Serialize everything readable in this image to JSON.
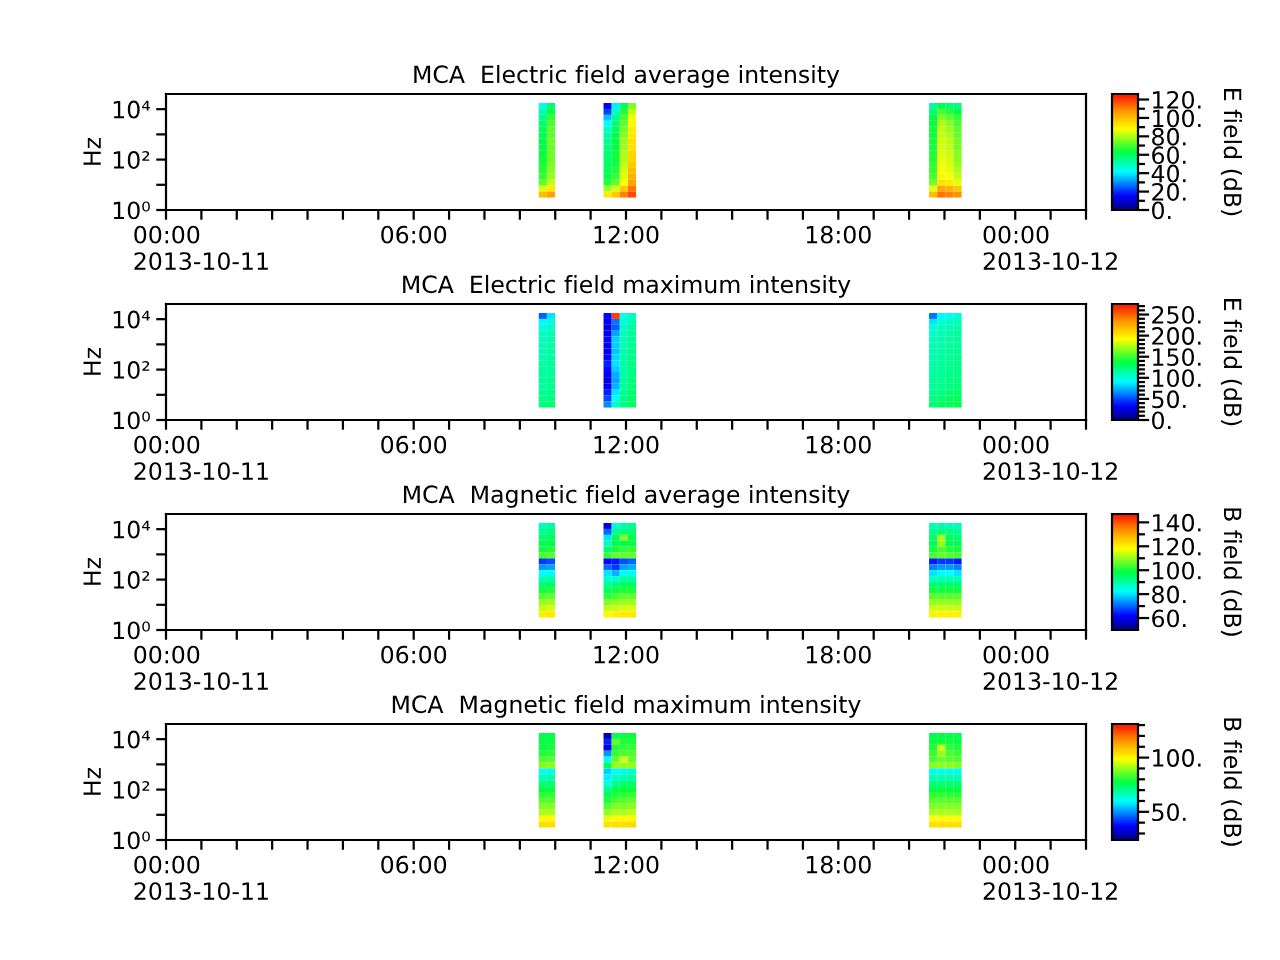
{
  "chart_data": [
    {
      "type": "heatmap",
      "title": "MCA  Electric field average intensity",
      "ylabel": "Hz",
      "clabel": "E field (dB)",
      "log": "y",
      "x": [
        9.65,
        9.88,
        10.11,
        11.25,
        11.48,
        11.71,
        11.94,
        12.17,
        12.4,
        20.45,
        20.68,
        20.91,
        21.14,
        21.37
      ],
      "y": [
        13400,
        7800,
        4560,
        2660,
        1550,
        906,
        528,
        308,
        180,
        105,
        61,
        36,
        21,
        12,
        7.1,
        4.1
      ],
      "xlim": [
        -1,
        25
      ],
      "xticks": [
        {
          "value": -1,
          "label": null
        },
        {
          "value": 0,
          "label": "00:00\n2013-10-11"
        },
        {
          "value": 1,
          "label": null
        },
        {
          "value": 2,
          "label": null
        },
        {
          "value": 3,
          "label": null
        },
        {
          "value": 4,
          "label": null
        },
        {
          "value": 5,
          "label": null
        },
        {
          "value": 6,
          "label": "06:00"
        },
        {
          "value": 7,
          "label": null
        },
        {
          "value": 8,
          "label": null
        },
        {
          "value": 9,
          "label": null
        },
        {
          "value": 10,
          "label": null
        },
        {
          "value": 11,
          "label": null
        },
        {
          "value": 12,
          "label": "12:00"
        },
        {
          "value": 13,
          "label": null
        },
        {
          "value": 14,
          "label": null
        },
        {
          "value": 15,
          "label": null
        },
        {
          "value": 16,
          "label": null
        },
        {
          "value": 17,
          "label": null
        },
        {
          "value": 18,
          "label": "18:00"
        },
        {
          "value": 19,
          "label": null
        },
        {
          "value": 20,
          "label": null
        },
        {
          "value": 21,
          "label": null
        },
        {
          "value": 22,
          "label": null
        },
        {
          "value": 23,
          "label": null
        },
        {
          "value": 24,
          "label": "00:00\n2013-10-12"
        },
        {
          "value": 25,
          "label": null
        }
      ],
      "ylim": [
        1,
        40000
      ],
      "yticks": [
        {
          "value": 1,
          "label": "10⁰"
        },
        {
          "value": 10,
          "label": null
        },
        {
          "value": 100,
          "label": "10²"
        },
        {
          "value": 1000,
          "label": null
        },
        {
          "value": 10000,
          "label": "10⁴"
        }
      ],
      "clim": [
        0,
        126
      ],
      "cticks": [
        {
          "value": 0,
          "label": "0."
        },
        {
          "value": 10,
          "label": null
        },
        {
          "value": 20,
          "label": "20."
        },
        {
          "value": 30,
          "label": null
        },
        {
          "value": 40,
          "label": "40."
        },
        {
          "value": 50,
          "label": null
        },
        {
          "value": 60,
          "label": "60."
        },
        {
          "value": 70,
          "label": null
        },
        {
          "value": 80,
          "label": "80."
        },
        {
          "value": 90,
          "label": null
        },
        {
          "value": 100,
          "label": "100."
        },
        {
          "value": 110,
          "label": null
        },
        {
          "value": 120,
          "label": "120."
        }
      ],
      "cells": [
        [
          44,
          58,
          null,
          null,
          15,
          40,
          60,
          75,
          null,
          null,
          52,
          62,
          58,
          56
        ],
        [
          50,
          64,
          null,
          null,
          22,
          48,
          66,
          82,
          null,
          null,
          58,
          70,
          66,
          63
        ],
        [
          55,
          68,
          null,
          null,
          35,
          55,
          70,
          88,
          null,
          null,
          62,
          76,
          72,
          68
        ],
        [
          58,
          70,
          null,
          null,
          42,
          58,
          72,
          90,
          null,
          null,
          63,
          80,
          76,
          70
        ],
        [
          60,
          72,
          null,
          null,
          48,
          60,
          74,
          92,
          null,
          null,
          64,
          82,
          78,
          72
        ],
        [
          62,
          72,
          null,
          null,
          52,
          62,
          76,
          92,
          null,
          null,
          64,
          82,
          80,
          73
        ],
        [
          62,
          73,
          null,
          null,
          55,
          63,
          78,
          94,
          null,
          null,
          65,
          84,
          81,
          74
        ],
        [
          63,
          73,
          null,
          null,
          56,
          63,
          78,
          94,
          null,
          null,
          65,
          84,
          82,
          74
        ],
        [
          63,
          74,
          null,
          null,
          58,
          64,
          80,
          95,
          null,
          null,
          66,
          85,
          83,
          76
        ],
        [
          64,
          74,
          null,
          null,
          58,
          64,
          80,
          96,
          null,
          null,
          66,
          86,
          84,
          76
        ],
        [
          65,
          75,
          null,
          null,
          60,
          65,
          82,
          98,
          null,
          null,
          68,
          87,
          85,
          78
        ],
        [
          66,
          76,
          null,
          null,
          60,
          66,
          84,
          100,
          null,
          null,
          68,
          88,
          86,
          80
        ],
        [
          68,
          78,
          null,
          null,
          62,
          68,
          85,
          102,
          null,
          null,
          70,
          90,
          88,
          82
        ],
        [
          72,
          82,
          null,
          null,
          66,
          72,
          88,
          105,
          null,
          null,
          74,
          94,
          92,
          86
        ],
        [
          85,
          92,
          null,
          null,
          78,
          84,
          98,
          112,
          null,
          null,
          86,
          104,
          102,
          98
        ],
        [
          100,
          105,
          null,
          null,
          92,
          98,
          110,
          118,
          null,
          null,
          100,
          112,
          110,
          108
        ]
      ]
    },
    {
      "type": "heatmap",
      "title": "MCA  Electric field maximum intensity",
      "ylabel": "Hz",
      "clabel": "E field (dB)",
      "log": "y",
      "x": [
        9.65,
        9.88,
        10.11,
        11.25,
        11.48,
        11.71,
        11.94,
        12.17,
        12.4,
        20.45,
        20.68,
        20.91,
        21.14,
        21.37
      ],
      "y": [
        13400,
        7800,
        4560,
        2660,
        1550,
        906,
        528,
        308,
        180,
        105,
        61,
        36,
        21,
        12,
        7.1,
        4.1
      ],
      "xlim": [
        -1,
        25
      ],
      "xticks": [
        {
          "value": -1,
          "label": null
        },
        {
          "value": 0,
          "label": "00:00\n2013-10-11"
        },
        {
          "value": 1,
          "label": null
        },
        {
          "value": 2,
          "label": null
        },
        {
          "value": 3,
          "label": null
        },
        {
          "value": 4,
          "label": null
        },
        {
          "value": 5,
          "label": null
        },
        {
          "value": 6,
          "label": "06:00"
        },
        {
          "value": 7,
          "label": null
        },
        {
          "value": 8,
          "label": null
        },
        {
          "value": 9,
          "label": null
        },
        {
          "value": 10,
          "label": null
        },
        {
          "value": 11,
          "label": null
        },
        {
          "value": 12,
          "label": "12:00"
        },
        {
          "value": 13,
          "label": null
        },
        {
          "value": 14,
          "label": null
        },
        {
          "value": 15,
          "label": null
        },
        {
          "value": 16,
          "label": null
        },
        {
          "value": 17,
          "label": null
        },
        {
          "value": 18,
          "label": "18:00"
        },
        {
          "value": 19,
          "label": null
        },
        {
          "value": 20,
          "label": null
        },
        {
          "value": 21,
          "label": null
        },
        {
          "value": 22,
          "label": null
        },
        {
          "value": 23,
          "label": null
        },
        {
          "value": 24,
          "label": "00:00\n2013-10-12"
        },
        {
          "value": 25,
          "label": null
        }
      ],
      "ylim": [
        1,
        40000
      ],
      "yticks": [
        {
          "value": 1,
          "label": "10⁰"
        },
        {
          "value": 10,
          "label": null
        },
        {
          "value": 100,
          "label": "10²"
        },
        {
          "value": 1000,
          "label": null
        },
        {
          "value": 10000,
          "label": "10⁴"
        }
      ],
      "clim": [
        0,
        275
      ],
      "cticks": [
        {
          "value": 0,
          "label": "0."
        },
        {
          "value": 10,
          "label": null
        },
        {
          "value": 20,
          "label": null
        },
        {
          "value": 30,
          "label": null
        },
        {
          "value": 40,
          "label": null
        },
        {
          "value": 50,
          "label": "50."
        },
        {
          "value": 60,
          "label": null
        },
        {
          "value": 70,
          "label": null
        },
        {
          "value": 80,
          "label": null
        },
        {
          "value": 90,
          "label": null
        },
        {
          "value": 100,
          "label": "100."
        },
        {
          "value": 110,
          "label": null
        },
        {
          "value": 120,
          "label": null
        },
        {
          "value": 130,
          "label": null
        },
        {
          "value": 140,
          "label": null
        },
        {
          "value": 150,
          "label": "150."
        },
        {
          "value": 160,
          "label": null
        },
        {
          "value": 170,
          "label": null
        },
        {
          "value": 180,
          "label": null
        },
        {
          "value": 190,
          "label": null
        },
        {
          "value": 200,
          "label": "200."
        },
        {
          "value": 210,
          "label": null
        },
        {
          "value": 220,
          "label": null
        },
        {
          "value": 230,
          "label": null
        },
        {
          "value": 240,
          "label": null
        },
        {
          "value": 250,
          "label": "250."
        },
        {
          "value": 260,
          "label": null
        },
        {
          "value": 270,
          "label": null
        }
      ],
      "cells": [
        [
          55,
          85,
          null,
          null,
          35,
          260,
          95,
          108,
          null,
          null,
          60,
          90,
          95,
          100
        ],
        [
          90,
          100,
          null,
          null,
          30,
          60,
          100,
          112,
          null,
          null,
          85,
          102,
          105,
          108
        ],
        [
          100,
          106,
          null,
          null,
          25,
          55,
          105,
          115,
          null,
          null,
          100,
          108,
          110,
          112
        ],
        [
          105,
          110,
          null,
          null,
          30,
          70,
          108,
          116,
          null,
          null,
          105,
          110,
          112,
          115
        ],
        [
          108,
          112,
          null,
          null,
          35,
          80,
          110,
          118,
          null,
          null,
          108,
          112,
          114,
          116
        ],
        [
          110,
          112,
          null,
          null,
          32,
          80,
          110,
          118,
          null,
          null,
          110,
          113,
          115,
          117
        ],
        [
          110,
          114,
          null,
          null,
          30,
          78,
          112,
          120,
          null,
          null,
          110,
          114,
          116,
          118
        ],
        [
          112,
          114,
          null,
          null,
          35,
          82,
          112,
          120,
          null,
          null,
          112,
          115,
          116,
          118
        ],
        [
          112,
          115,
          null,
          null,
          40,
          85,
          112,
          121,
          null,
          null,
          112,
          116,
          118,
          120
        ],
        [
          114,
          115,
          null,
          null,
          35,
          80,
          112,
          122,
          null,
          null,
          114,
          116,
          118,
          120
        ],
        [
          114,
          116,
          null,
          null,
          28,
          72,
          114,
          122,
          null,
          null,
          114,
          118,
          120,
          122
        ],
        [
          115,
          117,
          null,
          null,
          25,
          70,
          114,
          123,
          null,
          null,
          115,
          118,
          120,
          122
        ],
        [
          116,
          118,
          null,
          null,
          30,
          75,
          116,
          124,
          null,
          null,
          116,
          120,
          122,
          124
        ],
        [
          118,
          120,
          null,
          null,
          40,
          85,
          118,
          126,
          null,
          null,
          118,
          122,
          124,
          126
        ],
        [
          120,
          122,
          null,
          null,
          50,
          95,
          120,
          128,
          null,
          null,
          122,
          126,
          128,
          130
        ],
        [
          124,
          126,
          null,
          null,
          65,
          105,
          122,
          132,
          null,
          null,
          126,
          130,
          132,
          134
        ]
      ]
    },
    {
      "type": "heatmap",
      "title": "MCA  Magnetic field average intensity",
      "ylabel": "Hz",
      "clabel": "B field (dB)",
      "log": "y",
      "x": [
        9.65,
        9.88,
        10.11,
        11.25,
        11.48,
        11.71,
        11.94,
        12.17,
        12.4,
        20.45,
        20.68,
        20.91,
        21.14,
        21.37
      ],
      "y": [
        13400,
        7800,
        4560,
        2660,
        1550,
        906,
        528,
        308,
        180,
        105,
        61,
        36,
        21,
        12,
        7.1,
        4.1
      ],
      "xlim": [
        -1,
        25
      ],
      "xticks": [
        {
          "value": -1,
          "label": null
        },
        {
          "value": 0,
          "label": "00:00\n2013-10-11"
        },
        {
          "value": 1,
          "label": null
        },
        {
          "value": 2,
          "label": null
        },
        {
          "value": 3,
          "label": null
        },
        {
          "value": 4,
          "label": null
        },
        {
          "value": 5,
          "label": null
        },
        {
          "value": 6,
          "label": "06:00"
        },
        {
          "value": 7,
          "label": null
        },
        {
          "value": 8,
          "label": null
        },
        {
          "value": 9,
          "label": null
        },
        {
          "value": 10,
          "label": null
        },
        {
          "value": 11,
          "label": null
        },
        {
          "value": 12,
          "label": "12:00"
        },
        {
          "value": 13,
          "label": null
        },
        {
          "value": 14,
          "label": null
        },
        {
          "value": 15,
          "label": null
        },
        {
          "value": 16,
          "label": null
        },
        {
          "value": 17,
          "label": null
        },
        {
          "value": 18,
          "label": "18:00"
        },
        {
          "value": 19,
          "label": null
        },
        {
          "value": 20,
          "label": null
        },
        {
          "value": 21,
          "label": null
        },
        {
          "value": 22,
          "label": null
        },
        {
          "value": 23,
          "label": null
        },
        {
          "value": 24,
          "label": "00:00\n2013-10-12"
        },
        {
          "value": 25,
          "label": null
        }
      ],
      "ylim": [
        1,
        40000
      ],
      "yticks": [
        {
          "value": 1,
          "label": "10⁰"
        },
        {
          "value": 10,
          "label": null
        },
        {
          "value": 100,
          "label": "10²"
        },
        {
          "value": 1000,
          "label": null
        },
        {
          "value": 10000,
          "label": "10⁴"
        }
      ],
      "clim": [
        50,
        147
      ],
      "cticks": [
        {
          "value": 60,
          "label": "60."
        },
        {
          "value": 70,
          "label": null
        },
        {
          "value": 80,
          "label": "80."
        },
        {
          "value": 90,
          "label": null
        },
        {
          "value": 100,
          "label": "100."
        },
        {
          "value": 110,
          "label": null
        },
        {
          "value": 120,
          "label": "120."
        },
        {
          "value": 130,
          "label": null
        },
        {
          "value": 140,
          "label": "140."
        }
      ],
      "cells": [
        [
          88,
          90,
          null,
          null,
          60,
          86,
          90,
          92,
          null,
          null,
          88,
          90,
          89,
          88
        ],
        [
          92,
          94,
          null,
          null,
          70,
          92,
          94,
          95,
          null,
          null,
          92,
          94,
          93,
          92
        ],
        [
          95,
          96,
          null,
          null,
          80,
          96,
          108,
          97,
          null,
          null,
          95,
          112,
          96,
          95
        ],
        [
          97,
          98,
          null,
          null,
          88,
          98,
          98,
          99,
          null,
          null,
          97,
          110,
          98,
          97
        ],
        [
          100,
          101,
          null,
          null,
          95,
          100,
          102,
          102,
          null,
          null,
          100,
          104,
          101,
          100
        ],
        [
          104,
          105,
          null,
          null,
          102,
          106,
          106,
          106,
          null,
          null,
          104,
          106,
          105,
          104
        ],
        [
          66,
          68,
          null,
          null,
          62,
          64,
          68,
          70,
          null,
          null,
          64,
          66,
          66,
          64
        ],
        [
          74,
          75,
          null,
          null,
          70,
          66,
          75,
          76,
          null,
          null,
          72,
          74,
          74,
          72
        ],
        [
          82,
          83,
          null,
          null,
          80,
          76,
          83,
          84,
          null,
          null,
          80,
          82,
          82,
          80
        ],
        [
          89,
          90,
          null,
          null,
          86,
          86,
          90,
          90,
          null,
          null,
          88,
          89,
          89,
          88
        ],
        [
          95,
          96,
          null,
          null,
          92,
          94,
          96,
          96,
          null,
          null,
          95,
          95,
          95,
          95
        ],
        [
          100,
          101,
          null,
          null,
          96,
          100,
          101,
          101,
          null,
          null,
          100,
          100,
          100,
          100
        ],
        [
          105,
          106,
          null,
          null,
          102,
          104,
          106,
          106,
          null,
          null,
          105,
          105,
          105,
          105
        ],
        [
          110,
          111,
          null,
          null,
          108,
          110,
          111,
          111,
          null,
          null,
          110,
          110,
          110,
          110
        ],
        [
          114,
          115,
          null,
          null,
          113,
          114,
          115,
          115,
          null,
          null,
          114,
          114,
          114,
          114
        ],
        [
          120,
          121,
          null,
          null,
          119,
          120,
          121,
          121,
          null,
          null,
          120,
          120,
          120,
          120
        ]
      ]
    },
    {
      "type": "heatmap",
      "title": "MCA  Magnetic field maximum intensity",
      "ylabel": "Hz",
      "clabel": "B field (dB)",
      "log": "y",
      "x": [
        9.65,
        9.88,
        10.11,
        11.25,
        11.48,
        11.71,
        11.94,
        12.17,
        12.4,
        20.45,
        20.68,
        20.91,
        21.14,
        21.37
      ],
      "y": [
        13400,
        7800,
        4560,
        2660,
        1550,
        906,
        528,
        308,
        180,
        105,
        61,
        36,
        21,
        12,
        7.1,
        4.1
      ],
      "xlim": [
        -1,
        25
      ],
      "xticks": [
        {
          "value": -1,
          "label": null
        },
        {
          "value": 0,
          "label": "00:00\n2013-10-11"
        },
        {
          "value": 1,
          "label": null
        },
        {
          "value": 2,
          "label": null
        },
        {
          "value": 3,
          "label": null
        },
        {
          "value": 4,
          "label": null
        },
        {
          "value": 5,
          "label": null
        },
        {
          "value": 6,
          "label": "06:00"
        },
        {
          "value": 7,
          "label": null
        },
        {
          "value": 8,
          "label": null
        },
        {
          "value": 9,
          "label": null
        },
        {
          "value": 10,
          "label": null
        },
        {
          "value": 11,
          "label": null
        },
        {
          "value": 12,
          "label": "12:00"
        },
        {
          "value": 13,
          "label": null
        },
        {
          "value": 14,
          "label": null
        },
        {
          "value": 15,
          "label": null
        },
        {
          "value": 16,
          "label": null
        },
        {
          "value": 17,
          "label": null
        },
        {
          "value": 18,
          "label": "18:00"
        },
        {
          "value": 19,
          "label": null
        },
        {
          "value": 20,
          "label": null
        },
        {
          "value": 21,
          "label": null
        },
        {
          "value": 22,
          "label": null
        },
        {
          "value": 23,
          "label": null
        },
        {
          "value": 24,
          "label": "00:00\n2013-10-12"
        },
        {
          "value": 25,
          "label": null
        }
      ],
      "ylim": [
        1,
        40000
      ],
      "yticks": [
        {
          "value": 1,
          "label": "10⁰"
        },
        {
          "value": 10,
          "label": null
        },
        {
          "value": 100,
          "label": "10²"
        },
        {
          "value": 1000,
          "label": null
        },
        {
          "value": 10000,
          "label": "10⁴"
        }
      ],
      "clim": [
        24,
        131
      ],
      "cticks": [
        {
          "value": 30,
          "label": null
        },
        {
          "value": 40,
          "label": null
        },
        {
          "value": 50,
          "label": "50."
        },
        {
          "value": 60,
          "label": null
        },
        {
          "value": 70,
          "label": null
        },
        {
          "value": 80,
          "label": null
        },
        {
          "value": 90,
          "label": null
        },
        {
          "value": 100,
          "label": "100."
        },
        {
          "value": 110,
          "label": null
        },
        {
          "value": 120,
          "label": null
        },
        {
          "value": 130,
          "label": null
        }
      ],
      "cells": [
        [
          76,
          77,
          null,
          null,
          30,
          76,
          78,
          78,
          null,
          null,
          76,
          77,
          77,
          76
        ],
        [
          78,
          78,
          null,
          null,
          40,
          86,
          80,
          80,
          null,
          null,
          78,
          79,
          79,
          78
        ],
        [
          78,
          79,
          null,
          null,
          35,
          80,
          82,
          82,
          null,
          null,
          80,
          95,
          81,
          80
        ],
        [
          80,
          81,
          null,
          null,
          50,
          82,
          84,
          84,
          null,
          null,
          82,
          90,
          83,
          82
        ],
        [
          84,
          85,
          null,
          null,
          60,
          86,
          95,
          86,
          null,
          null,
          84,
          86,
          85,
          84
        ],
        [
          88,
          89,
          null,
          null,
          75,
          90,
          90,
          90,
          null,
          null,
          88,
          89,
          89,
          88
        ],
        [
          61,
          62,
          null,
          null,
          55,
          60,
          62,
          64,
          null,
          null,
          61,
          62,
          62,
          61
        ],
        [
          66,
          67,
          null,
          null,
          58,
          64,
          67,
          68,
          null,
          null,
          66,
          67,
          67,
          66
        ],
        [
          72,
          72,
          null,
          null,
          62,
          70,
          72,
          73,
          null,
          null,
          72,
          72,
          72,
          72
        ],
        [
          77,
          78,
          null,
          null,
          70,
          76,
          78,
          78,
          null,
          null,
          77,
          78,
          78,
          77
        ],
        [
          81,
          81,
          null,
          null,
          76,
          80,
          81,
          82,
          null,
          null,
          81,
          81,
          81,
          81
        ],
        [
          85,
          85,
          null,
          null,
          80,
          84,
          85,
          86,
          null,
          null,
          85,
          85,
          85,
          85
        ],
        [
          88,
          88,
          null,
          null,
          85,
          88,
          88,
          89,
          null,
          null,
          88,
          88,
          88,
          88
        ],
        [
          92,
          92,
          null,
          null,
          90,
          92,
          92,
          93,
          null,
          null,
          92,
          92,
          92,
          92
        ],
        [
          99,
          99,
          null,
          null,
          97,
          99,
          99,
          100,
          null,
          null,
          99,
          99,
          99,
          99
        ],
        [
          104,
          104,
          null,
          null,
          103,
          104,
          104,
          105,
          null,
          null,
          104,
          104,
          104,
          104
        ]
      ]
    }
  ]
}
